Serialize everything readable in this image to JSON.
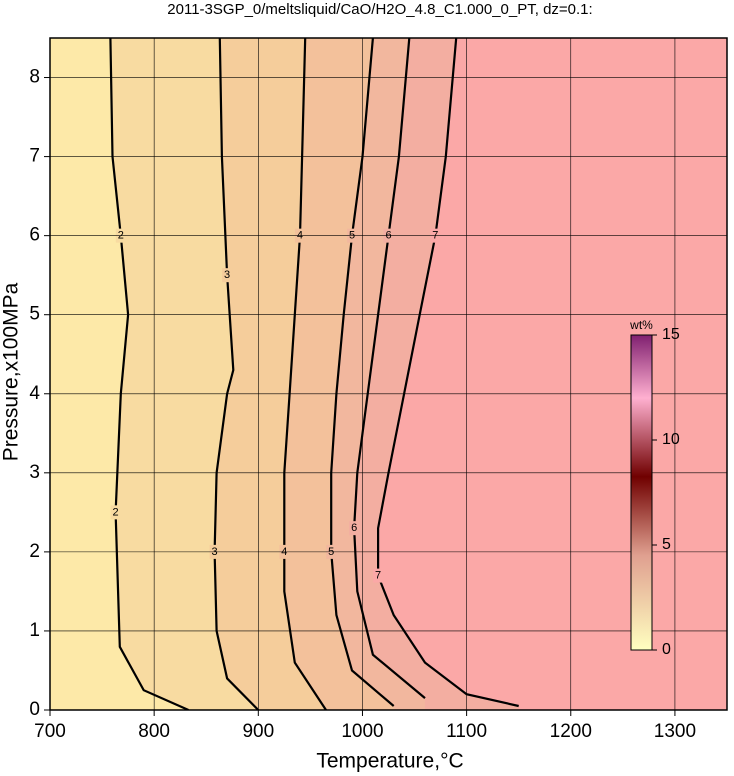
{
  "chart_data": {
    "type": "contour",
    "title": "2011-3SGP_0/meltsliquid/CaO/H2O_4.8_C1.000_0_PT, dz=0.1:",
    "x_label": "Temperature,°C",
    "y_label": "Pressure,x100MPa",
    "xlim": [
      700,
      1350
    ],
    "ylim": [
      0,
      8.5
    ],
    "xticks": [
      700,
      800,
      900,
      1000,
      1100,
      1200,
      1300
    ],
    "yticks": [
      0,
      1,
      2,
      3,
      4,
      5,
      6,
      7,
      8
    ],
    "grid": true,
    "background_color": "#fde9a8",
    "series": [
      {
        "name": "2",
        "color": "#f8dba1",
        "x": [
          833,
          790,
          767,
          763,
          768,
          775,
          768,
          760,
          758
        ],
        "values": [
          0,
          0.25,
          0.8,
          2.5,
          4,
          5,
          6,
          7,
          8.5
        ]
      },
      {
        "name": "3",
        "color": "#f5cd9b",
        "x": [
          900,
          870,
          860,
          858,
          860,
          870,
          876,
          870,
          865,
          863
        ],
        "values": [
          0,
          0.4,
          1,
          2,
          3,
          4,
          4.3,
          5.5,
          7,
          8.5
        ]
      },
      {
        "name": "4",
        "color": "#f3c19b",
        "x": [
          965,
          935,
          925,
          925,
          925,
          930,
          935,
          940,
          942,
          945
        ],
        "values": [
          0,
          0.6,
          1.5,
          2,
          3,
          4,
          5,
          6,
          7,
          8.5
        ]
      },
      {
        "name": "5",
        "color": "#f2b79e",
        "x": [
          1030,
          990,
          975,
          970,
          970,
          975,
          982,
          990,
          1000,
          1010
        ],
        "values": [
          0.05,
          0.5,
          1.2,
          2,
          3,
          4,
          5,
          6,
          7,
          8.5
        ]
      },
      {
        "name": "6",
        "color": "#f3aea1",
        "x": [
          1060,
          1010,
          995,
          992,
          995,
          1005,
          1015,
          1025,
          1035,
          1045
        ],
        "values": [
          0.15,
          0.7,
          1.5,
          2.3,
          3,
          4,
          5,
          6,
          7,
          8.5
        ]
      },
      {
        "name": "7",
        "color": "#fba8a7",
        "x": [
          1150,
          1100,
          1060,
          1030,
          1015,
          1015,
          1025,
          1040,
          1055,
          1070,
          1080,
          1090
        ],
        "values": [
          0.05,
          0.2,
          0.6,
          1.2,
          1.7,
          2.3,
          3,
          4,
          5,
          6,
          7,
          8.5
        ]
      }
    ],
    "colorbar": {
      "title": "wt%",
      "lim": [
        0,
        15
      ],
      "ticks": [
        0,
        5,
        10,
        15
      ]
    }
  }
}
